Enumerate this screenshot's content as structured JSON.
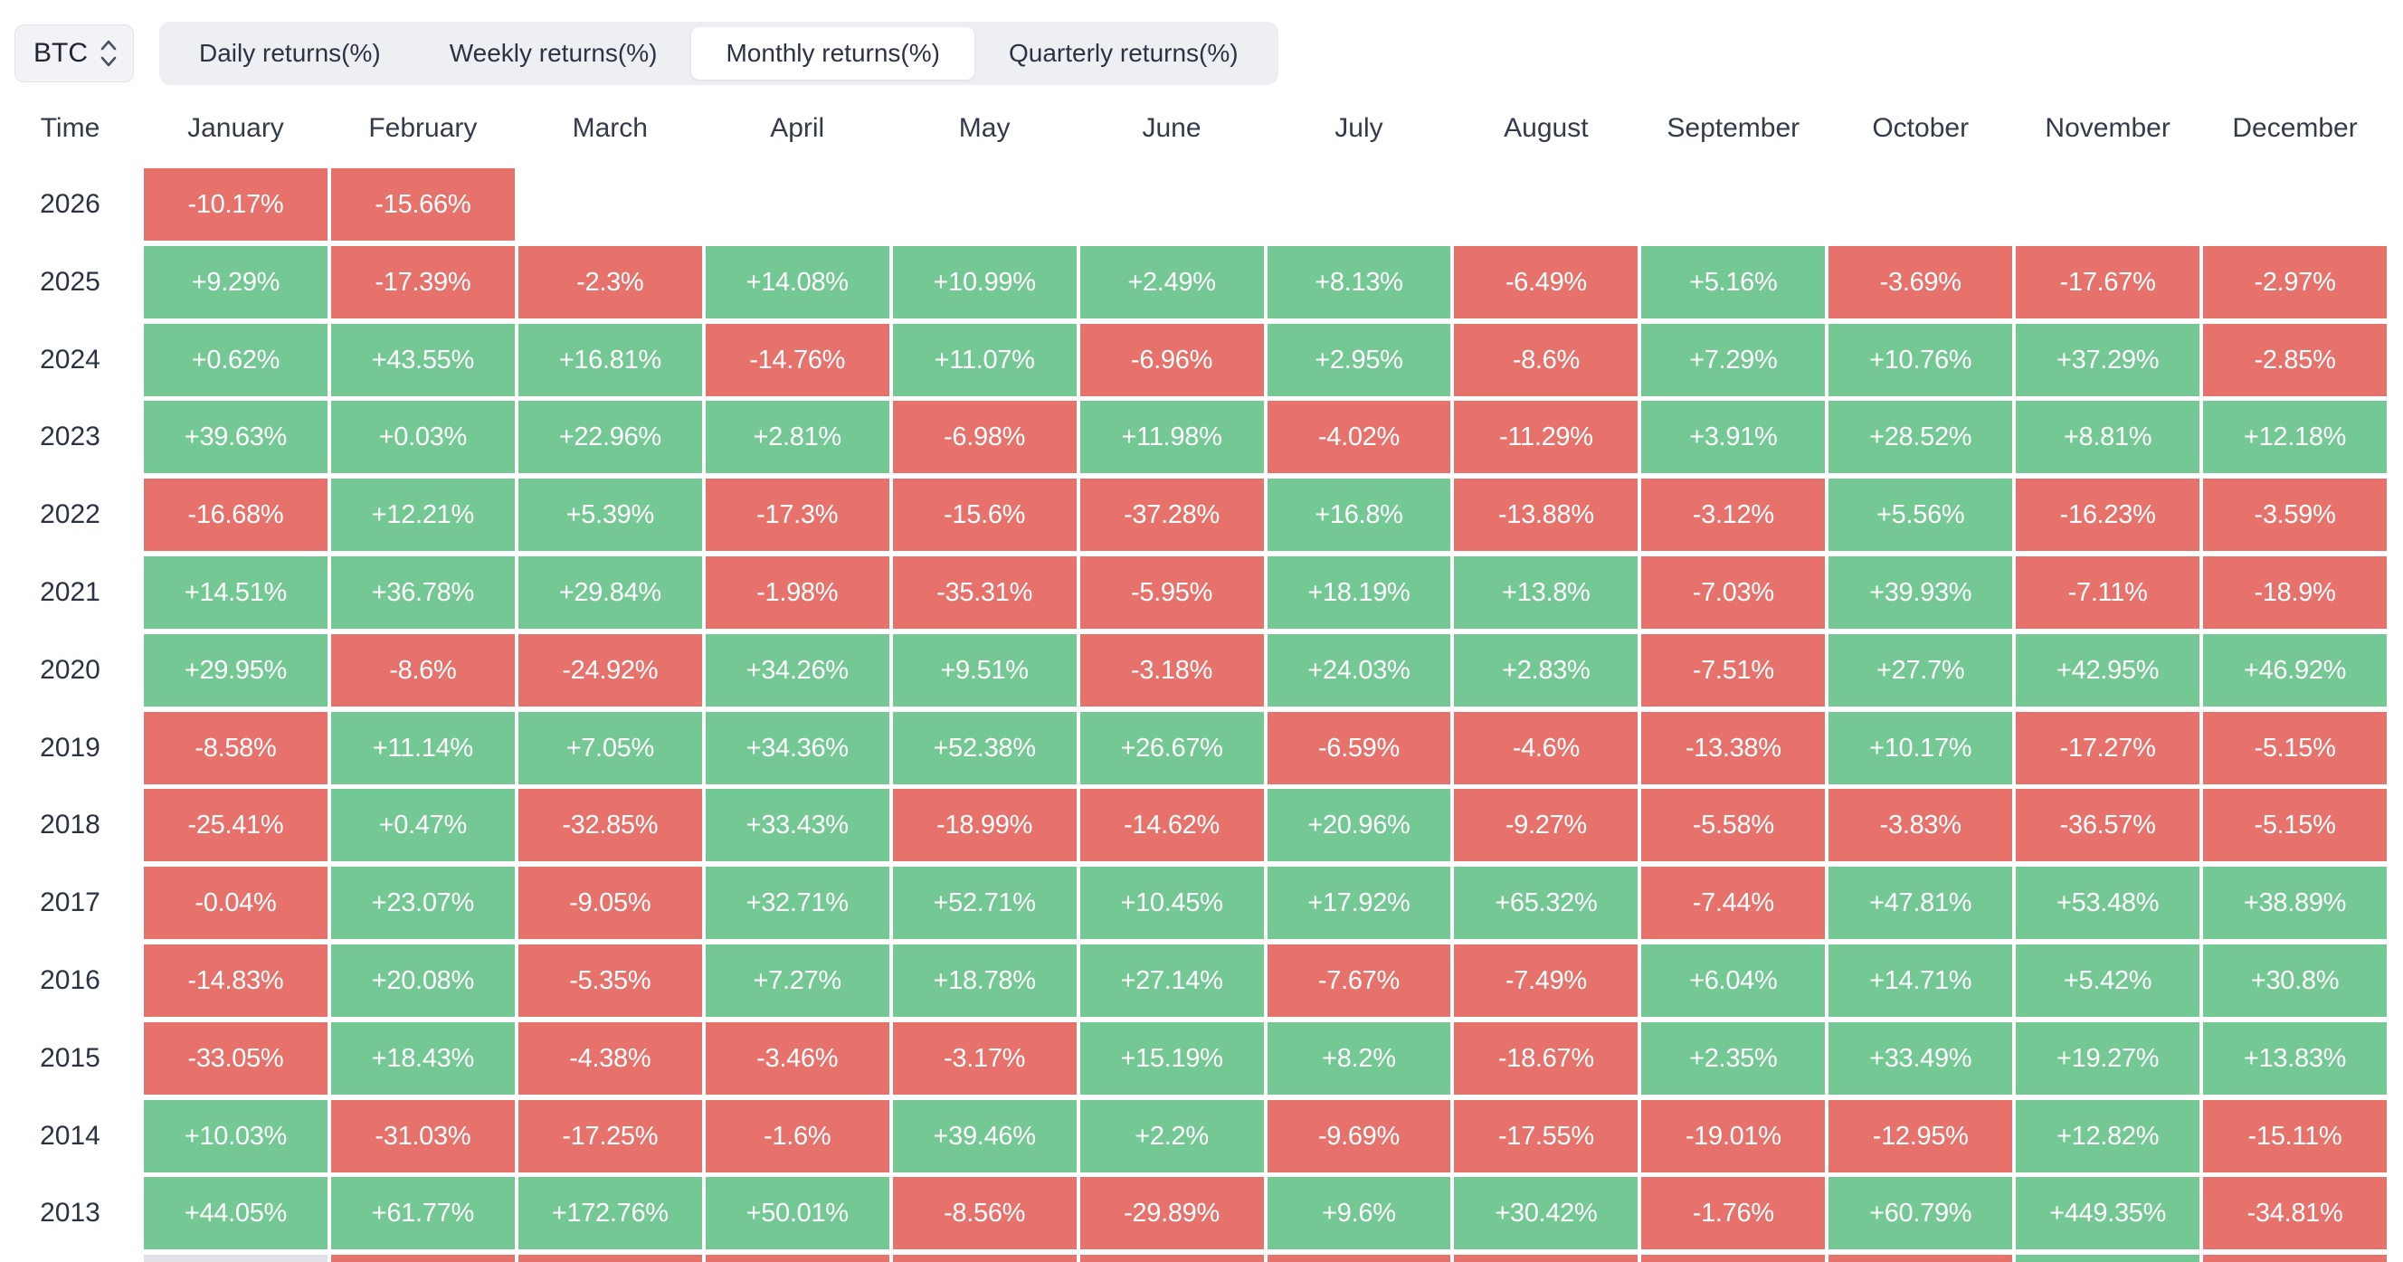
{
  "asset_selector": {
    "value": "BTC",
    "icon": "updown-chevron-icon"
  },
  "tabs": [
    {
      "label": "Daily returns(%)",
      "active": false
    },
    {
      "label": "Weekly returns(%)",
      "active": false
    },
    {
      "label": "Monthly returns(%)",
      "active": true
    },
    {
      "label": "Quarterly returns(%)",
      "active": false
    }
  ],
  "colors": {
    "positive": "#74C893",
    "negative": "#E7726B",
    "header_text": "#333B49",
    "year_text": "#2B3342",
    "tabbar_bg": "#EDEFF3",
    "active_tab_bg": "#FFFFFF",
    "selector_bg": "#F2F3F6"
  },
  "table": {
    "time_header": "Time",
    "month_headers": [
      "January",
      "February",
      "March",
      "April",
      "May",
      "June",
      "July",
      "August",
      "September",
      "October",
      "November",
      "December"
    ],
    "rows": [
      {
        "year": "2026",
        "values": [
          "-10.17%",
          "-15.66%",
          "",
          "",
          "",
          "",
          "",
          "",
          "",
          "",
          "",
          ""
        ]
      },
      {
        "year": "2025",
        "values": [
          "+9.29%",
          "-17.39%",
          "-2.3%",
          "+14.08%",
          "+10.99%",
          "+2.49%",
          "+8.13%",
          "-6.49%",
          "+5.16%",
          "-3.69%",
          "-17.67%",
          "-2.97%"
        ]
      },
      {
        "year": "2024",
        "values": [
          "+0.62%",
          "+43.55%",
          "+16.81%",
          "-14.76%",
          "+11.07%",
          "-6.96%",
          "+2.95%",
          "-8.6%",
          "+7.29%",
          "+10.76%",
          "+37.29%",
          "-2.85%"
        ]
      },
      {
        "year": "2023",
        "values": [
          "+39.63%",
          "+0.03%",
          "+22.96%",
          "+2.81%",
          "-6.98%",
          "+11.98%",
          "-4.02%",
          "-11.29%",
          "+3.91%",
          "+28.52%",
          "+8.81%",
          "+12.18%"
        ]
      },
      {
        "year": "2022",
        "values": [
          "-16.68%",
          "+12.21%",
          "+5.39%",
          "-17.3%",
          "-15.6%",
          "-37.28%",
          "+16.8%",
          "-13.88%",
          "-3.12%",
          "+5.56%",
          "-16.23%",
          "-3.59%"
        ]
      },
      {
        "year": "2021",
        "values": [
          "+14.51%",
          "+36.78%",
          "+29.84%",
          "-1.98%",
          "-35.31%",
          "-5.95%",
          "+18.19%",
          "+13.8%",
          "-7.03%",
          "+39.93%",
          "-7.11%",
          "-18.9%"
        ]
      },
      {
        "year": "2020",
        "values": [
          "+29.95%",
          "-8.6%",
          "-24.92%",
          "+34.26%",
          "+9.51%",
          "-3.18%",
          "+24.03%",
          "+2.83%",
          "-7.51%",
          "+27.7%",
          "+42.95%",
          "+46.92%"
        ]
      },
      {
        "year": "2019",
        "values": [
          "-8.58%",
          "+11.14%",
          "+7.05%",
          "+34.36%",
          "+52.38%",
          "+26.67%",
          "-6.59%",
          "-4.6%",
          "-13.38%",
          "+10.17%",
          "-17.27%",
          "-5.15%"
        ]
      },
      {
        "year": "2018",
        "values": [
          "-25.41%",
          "+0.47%",
          "-32.85%",
          "+33.43%",
          "-18.99%",
          "-14.62%",
          "+20.96%",
          "-9.27%",
          "-5.58%",
          "-3.83%",
          "-36.57%",
          "-5.15%"
        ]
      },
      {
        "year": "2017",
        "values": [
          "-0.04%",
          "+23.07%",
          "-9.05%",
          "+32.71%",
          "+52.71%",
          "+10.45%",
          "+17.92%",
          "+65.32%",
          "-7.44%",
          "+47.81%",
          "+53.48%",
          "+38.89%"
        ]
      },
      {
        "year": "2016",
        "values": [
          "-14.83%",
          "+20.08%",
          "-5.35%",
          "+7.27%",
          "+18.78%",
          "+27.14%",
          "-7.67%",
          "-7.49%",
          "+6.04%",
          "+14.71%",
          "+5.42%",
          "+30.8%"
        ]
      },
      {
        "year": "2015",
        "values": [
          "-33.05%",
          "+18.43%",
          "-4.38%",
          "-3.46%",
          "-3.17%",
          "+15.19%",
          "+8.2%",
          "-18.67%",
          "+2.35%",
          "+33.49%",
          "+19.27%",
          "+13.83%"
        ]
      },
      {
        "year": "2014",
        "values": [
          "+10.03%",
          "-31.03%",
          "-17.25%",
          "-1.6%",
          "+39.46%",
          "+2.2%",
          "-9.69%",
          "-17.55%",
          "-19.01%",
          "-12.95%",
          "+12.82%",
          "-15.11%"
        ]
      },
      {
        "year": "2013",
        "values": [
          "+44.05%",
          "+61.77%",
          "+172.76%",
          "+50.01%",
          "-8.56%",
          "-29.89%",
          "+9.6%",
          "+30.42%",
          "-1.76%",
          "+60.79%",
          "+449.35%",
          "-34.81%"
        ]
      }
    ],
    "partial_next_row_colors": [
      "#DFE1E6",
      "#E7726B",
      "#E7726B",
      "#E7726B",
      "#E7726B",
      "#E7726B",
      "#E7726B",
      "#E7726B",
      "#E7726B",
      "#E7726B",
      "#74C893",
      "#E7726B"
    ]
  }
}
